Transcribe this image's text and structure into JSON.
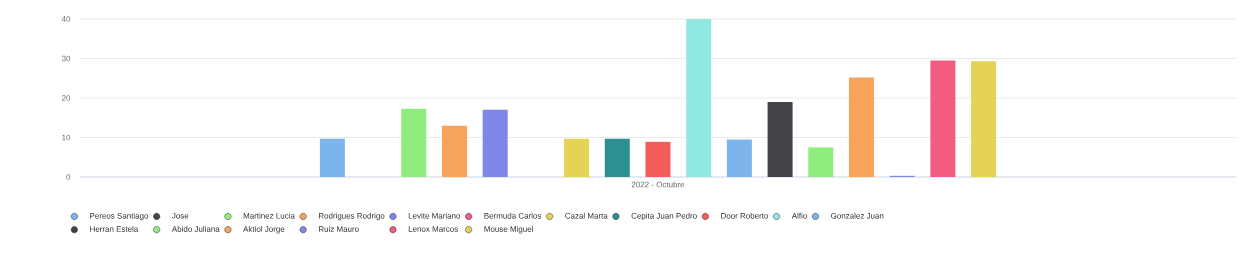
{
  "chart_data": {
    "type": "bar",
    "categories": [
      "2022 - Octubre"
    ],
    "ylim": [
      0,
      40
    ],
    "yticks": [
      0,
      10,
      20,
      30,
      40
    ],
    "grid": "y",
    "legend": "bottom",
    "series": [
      {
        "name": "Pereos Santiago",
        "color": "#7cb5ec",
        "values": [
          9.7
        ]
      },
      {
        "name": "Jose",
        "color": "#434348",
        "values": [
          null
        ]
      },
      {
        "name": "Martinez Lucia",
        "color": "#90ed7d",
        "values": [
          17.3
        ]
      },
      {
        "name": "Rodrigues Rodrigo",
        "color": "#f7a35c",
        "values": [
          13.0
        ]
      },
      {
        "name": "Levite Mariano",
        "color": "#8085e9",
        "values": [
          17.0
        ]
      },
      {
        "name": "Bermuda Carlos",
        "color": "#f15c80",
        "values": [
          null
        ]
      },
      {
        "name": "Cazal Marta",
        "color": "#e4d354",
        "values": [
          9.7
        ]
      },
      {
        "name": "Cepita Juan Pedro",
        "color": "#2b908f",
        "values": [
          9.7
        ]
      },
      {
        "name": "Door Roberto",
        "color": "#f45b5b",
        "values": [
          8.9
        ]
      },
      {
        "name": "Alfio",
        "color": "#91e8e1",
        "values": [
          40
        ]
      },
      {
        "name": "Gonzalez Juan",
        "color": "#7cb5ec",
        "values": [
          9.5
        ]
      },
      {
        "name": "Herran Estela",
        "color": "#434348",
        "values": [
          19.0
        ]
      },
      {
        "name": "Abido Juliana",
        "color": "#90ed7d",
        "values": [
          7.5
        ]
      },
      {
        "name": "Aktiol Jorge",
        "color": "#f7a35c",
        "values": [
          25.2
        ]
      },
      {
        "name": "Ruiz Mauro",
        "color": "#8085e9",
        "values": [
          0.3
        ]
      },
      {
        "name": "Lenox Marcos",
        "color": "#f15c80",
        "values": [
          29.5
        ]
      },
      {
        "name": "Mouse Miguel",
        "color": "#e4d354",
        "values": [
          29.3
        ]
      }
    ]
  }
}
